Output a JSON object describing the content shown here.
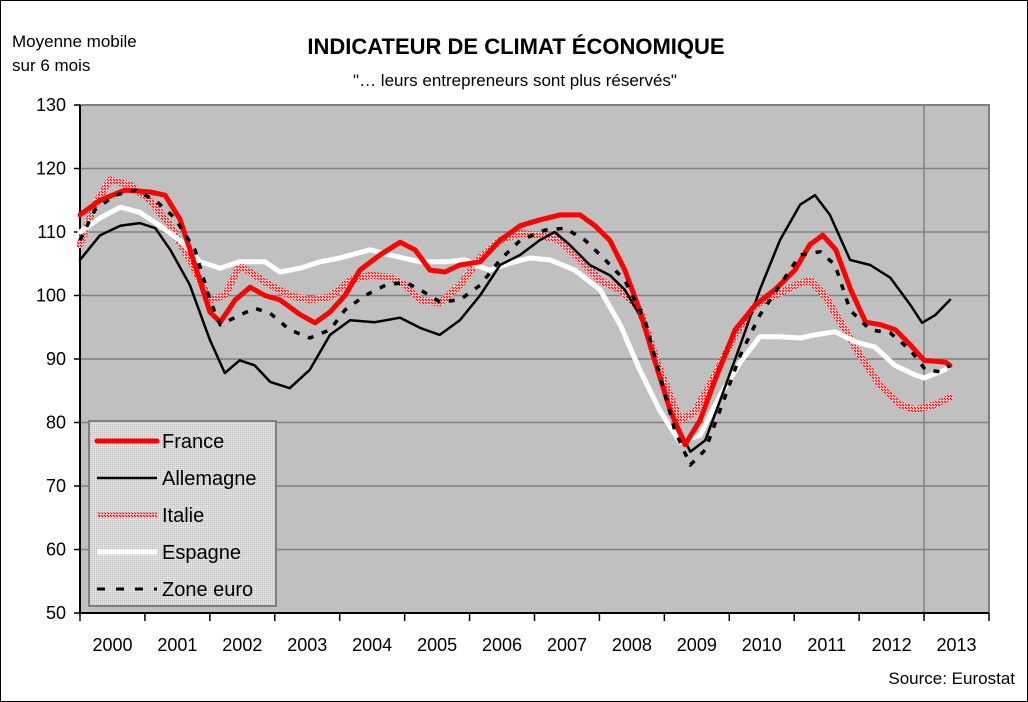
{
  "chart_data": {
    "type": "line",
    "title": "INDICATEUR DE CLIMAT ÉCONOMIQUE",
    "subtitle": "\"… leurs entrepreneurs sont plus réservés\"",
    "ylabel": "Moyenne mobile sur 6 mois",
    "ylabel_lines": [
      "Moyenne mobile",
      "sur 6 mois"
    ],
    "xlabel": "",
    "source": "Source: Eurostat",
    "ylim": [
      50,
      130
    ],
    "yticks": [
      50,
      60,
      70,
      80,
      90,
      100,
      110,
      120,
      130
    ],
    "xlim": [
      2000,
      2014
    ],
    "xtick_labels": [
      "2000",
      "2001",
      "2002",
      "2003",
      "2004",
      "2005",
      "2006",
      "2007",
      "2008",
      "2009",
      "2010",
      "2011",
      "2012",
      "2013"
    ],
    "grid": "horizontal",
    "legend_position": "bottom-left",
    "series": [
      {
        "name": "France",
        "color": "#ff0000",
        "style": "thick-solid",
        "x": [
          2000.0,
          2000.31,
          2000.69,
          2001.08,
          2001.31,
          2001.54,
          2001.77,
          2002.0,
          2002.16,
          2002.39,
          2002.62,
          2002.85,
          2003.08,
          2003.39,
          2003.62,
          2003.85,
          2004.08,
          2004.31,
          2004.62,
          2004.93,
          2005.16,
          2005.39,
          2005.62,
          2005.85,
          2006.16,
          2006.47,
          2006.78,
          2007.08,
          2007.39,
          2007.7,
          2007.93,
          2008.16,
          2008.39,
          2008.62,
          2008.85,
          2009.09,
          2009.32,
          2009.55,
          2009.78,
          2010.09,
          2010.4,
          2010.71,
          2011.01,
          2011.24,
          2011.44,
          2011.64,
          2011.87,
          2012.1,
          2012.33,
          2012.56,
          2012.79,
          2013.0,
          2013.33,
          2013.4
        ],
        "values": [
          112.7,
          115.0,
          116.6,
          116.3,
          115.8,
          112.0,
          104.8,
          97.4,
          95.8,
          99.3,
          101.3,
          100.0,
          99.3,
          97.0,
          95.7,
          97.4,
          100.0,
          104.0,
          106.4,
          108.4,
          107.2,
          104.0,
          103.7,
          104.8,
          105.3,
          108.7,
          111.0,
          111.9,
          112.7,
          112.7,
          111.0,
          108.7,
          104.0,
          97.7,
          89.8,
          81.9,
          76.5,
          80.4,
          86.7,
          94.6,
          98.5,
          101.0,
          104.0,
          108.0,
          109.5,
          107.2,
          100.9,
          95.8,
          95.4,
          94.6,
          92.2,
          89.8,
          89.5,
          89.0
        ]
      },
      {
        "name": "Allemagne",
        "color": "#000000",
        "style": "thin-solid",
        "x": [
          2000.0,
          2000.31,
          2000.62,
          2000.92,
          2001.16,
          2001.39,
          2001.69,
          2002.0,
          2002.23,
          2002.46,
          2002.69,
          2002.93,
          2003.23,
          2003.54,
          2003.85,
          2004.16,
          2004.54,
          2004.93,
          2005.24,
          2005.54,
          2005.85,
          2006.16,
          2006.47,
          2006.78,
          2007.08,
          2007.31,
          2007.54,
          2007.85,
          2008.16,
          2008.39,
          2008.62,
          2008.85,
          2009.09,
          2009.4,
          2009.63,
          2009.86,
          2010.17,
          2010.47,
          2010.78,
          2011.09,
          2011.32,
          2011.55,
          2011.86,
          2012.17,
          2012.48,
          2012.79,
          2012.97,
          2013.17,
          2013.4
        ],
        "values": [
          105.6,
          109.5,
          111.0,
          111.4,
          110.6,
          107.2,
          101.7,
          93.0,
          87.8,
          89.8,
          89.0,
          86.4,
          85.4,
          88.3,
          93.8,
          96.1,
          95.8,
          96.5,
          94.9,
          93.8,
          96.1,
          100.0,
          104.8,
          106.4,
          108.7,
          110.0,
          108.0,
          104.8,
          103.2,
          100.9,
          96.9,
          89.8,
          81.9,
          75.4,
          77.2,
          83.5,
          92.2,
          100.9,
          108.7,
          114.3,
          115.8,
          112.7,
          105.6,
          104.8,
          102.8,
          98.5,
          95.7,
          96.9,
          99.3
        ]
      },
      {
        "name": "Italie",
        "color": "#e06060",
        "style": "thick-hatched",
        "x": [
          2000.0,
          2000.23,
          2000.46,
          2000.77,
          2001.08,
          2001.39,
          2001.69,
          2002.0,
          2002.23,
          2002.46,
          2002.69,
          2002.93,
          2003.23,
          2003.54,
          2003.85,
          2004.16,
          2004.47,
          2004.77,
          2005.01,
          2005.24,
          2005.54,
          2005.85,
          2006.16,
          2006.47,
          2006.78,
          2007.08,
          2007.39,
          2007.7,
          2008.01,
          2008.32,
          2008.62,
          2008.93,
          2009.24,
          2009.47,
          2009.78,
          2010.09,
          2010.4,
          2010.71,
          2011.01,
          2011.24,
          2011.47,
          2011.78,
          2012.01,
          2012.32,
          2012.63,
          2012.86,
          2013.17,
          2013.4
        ],
        "values": [
          108.0,
          114.3,
          118.2,
          117.4,
          115.0,
          111.0,
          105.6,
          99.3,
          100.0,
          104.8,
          103.2,
          101.6,
          100.0,
          99.3,
          99.8,
          102.4,
          103.2,
          102.9,
          101.6,
          99.3,
          98.8,
          101.6,
          105.9,
          108.7,
          109.8,
          109.5,
          108.7,
          105.6,
          102.4,
          100.9,
          97.7,
          88.3,
          80.4,
          81.7,
          87.5,
          93.8,
          98.5,
          100.0,
          101.6,
          102.4,
          100.0,
          94.6,
          90.6,
          85.9,
          82.8,
          82.0,
          82.8,
          84.0
        ]
      },
      {
        "name": "Espagne",
        "color": "#ffffff",
        "style": "thick-solid",
        "x": [
          2000.0,
          2000.31,
          2000.62,
          2000.92,
          2001.23,
          2001.54,
          2001.85,
          2002.16,
          2002.46,
          2002.85,
          2003.08,
          2003.39,
          2003.7,
          2004.0,
          2004.47,
          2004.77,
          2005.24,
          2005.62,
          2005.93,
          2006.08,
          2006.31,
          2006.62,
          2006.93,
          2007.24,
          2007.62,
          2008.01,
          2008.32,
          2008.62,
          2008.93,
          2009.24,
          2009.55,
          2009.86,
          2010.17,
          2010.47,
          2010.78,
          2011.09,
          2011.32,
          2011.63,
          2011.94,
          2012.24,
          2012.55,
          2012.86,
          2013.0,
          2013.32,
          2013.4
        ],
        "values": [
          110.0,
          112.2,
          113.9,
          113.1,
          111.0,
          108.7,
          105.3,
          104.3,
          105.3,
          105.3,
          103.7,
          104.3,
          105.3,
          105.9,
          107.2,
          106.4,
          105.3,
          105.3,
          105.6,
          104.8,
          104.0,
          105.1,
          105.9,
          105.6,
          104.0,
          100.9,
          95.4,
          88.3,
          81.9,
          76.9,
          78.0,
          84.3,
          89.5,
          93.5,
          93.5,
          93.3,
          93.8,
          94.3,
          92.7,
          91.9,
          89.0,
          87.5,
          87.0,
          88.3,
          89.0
        ]
      },
      {
        "name": "Zone euro",
        "color": "#000000",
        "style": "dashed",
        "x": [
          2000.0,
          2000.23,
          2000.54,
          2000.85,
          2001.16,
          2001.46,
          2001.77,
          2002.0,
          2002.16,
          2002.46,
          2002.69,
          2002.93,
          2003.23,
          2003.54,
          2003.85,
          2004.08,
          2004.39,
          2004.7,
          2005.01,
          2005.24,
          2005.54,
          2005.85,
          2006.16,
          2006.47,
          2006.78,
          2007.16,
          2007.47,
          2007.78,
          2008.09,
          2008.39,
          2008.7,
          2008.93,
          2009.16,
          2009.4,
          2009.63,
          2009.86,
          2010.17,
          2010.47,
          2010.78,
          2011.09,
          2011.4,
          2011.63,
          2011.86,
          2012.17,
          2012.48,
          2012.79,
          2013.02,
          2013.25,
          2013.4
        ],
        "values": [
          108.7,
          113.5,
          115.8,
          116.6,
          115.0,
          112.2,
          107.2,
          99.3,
          95.4,
          96.9,
          98.0,
          97.2,
          94.6,
          93.3,
          94.6,
          97.7,
          100.0,
          101.6,
          102.1,
          100.9,
          99.0,
          99.3,
          101.6,
          105.6,
          108.7,
          110.3,
          110.6,
          108.7,
          105.6,
          102.4,
          96.1,
          87.5,
          78.8,
          73.3,
          75.7,
          82.0,
          90.6,
          96.9,
          101.6,
          106.4,
          106.9,
          104.8,
          97.7,
          94.6,
          94.1,
          91.4,
          88.3,
          88.0,
          89.0
        ]
      }
    ]
  }
}
